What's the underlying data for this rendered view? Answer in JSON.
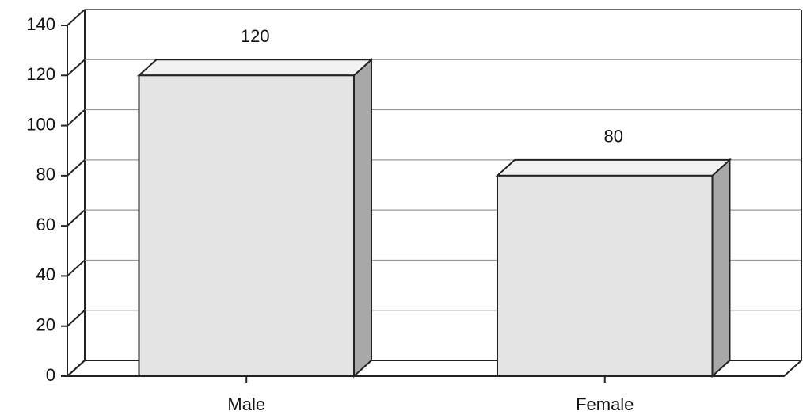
{
  "chart_data": {
    "type": "bar",
    "categories": [
      "Male",
      "Female"
    ],
    "values": [
      120,
      80
    ],
    "color": "#e4e4e4",
    "side_color": "#a8a8a8",
    "top_color": "#f2f2f2",
    "ylim": [
      0,
      140
    ],
    "yticks": [
      0,
      20,
      40,
      60,
      80,
      100,
      120,
      140
    ],
    "grid": true
  }
}
